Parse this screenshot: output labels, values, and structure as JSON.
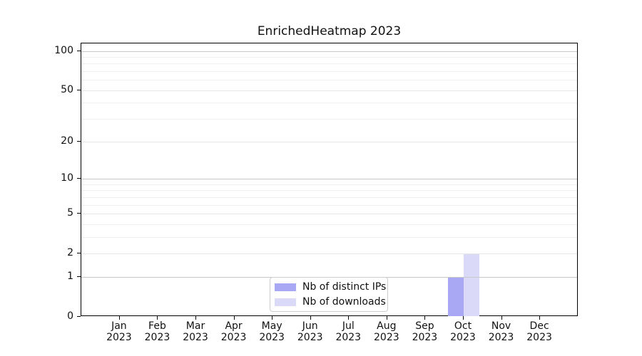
{
  "chart_data": {
    "type": "bar",
    "title": "EnrichedHeatmap 2023",
    "categories": [
      "Jan",
      "Feb",
      "Mar",
      "Apr",
      "May",
      "Jun",
      "Jul",
      "Aug",
      "Sep",
      "Oct",
      "Nov",
      "Dec"
    ],
    "x_year_label": "2023",
    "series": [
      {
        "name": "Nb of distinct IPs",
        "color": "#a8a8f4",
        "values": [
          0,
          0,
          0,
          0,
          0,
          0,
          0,
          0,
          0,
          1,
          0,
          0
        ]
      },
      {
        "name": "Nb of downloads",
        "color": "#dadaf8",
        "values": [
          0,
          0,
          0,
          0,
          0,
          0,
          0,
          0,
          0,
          2,
          0,
          0
        ]
      }
    ],
    "yscale": "log1p",
    "ylim": [
      0,
      114
    ],
    "y_major_ticks": [
      0,
      1,
      2,
      5,
      10,
      20,
      50,
      100
    ],
    "y_decade_gridlines": [
      1,
      10,
      100
    ],
    "y_minor_gridlines": [
      3,
      4,
      6,
      7,
      8,
      9,
      30,
      40,
      60,
      70,
      80,
      90
    ],
    "grid": "horizontal",
    "legend_position": "lower center inside",
    "colors": {
      "decade_gridline": "#c8c8c8",
      "major_gridline": "#e6e6e6",
      "minor_gridline": "#efefef",
      "spine": "#000000",
      "text": "#111111",
      "legend_border": "#cccccc",
      "background": "#ffffff"
    }
  }
}
